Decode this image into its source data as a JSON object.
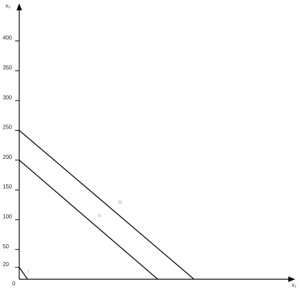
{
  "chart_data": {
    "type": "line",
    "x_label": "x₁",
    "y_label": "x₂",
    "origin_label": "0",
    "xlim": [
      0,
      464
    ],
    "ylim": [
      0,
      463
    ],
    "yticks": [
      20,
      50,
      100,
      150,
      200,
      250,
      300,
      350,
      400
    ],
    "series": [
      {
        "name": "I",
        "color": "#000000",
        "x": [
          0,
          14
        ],
        "values": [
          20,
          0
        ]
      },
      {
        "name": "II",
        "color": "#000000",
        "x": [
          0,
          233
        ],
        "values": [
          200,
          0
        ]
      },
      {
        "name": "III",
        "color": "#000000",
        "x": [
          0,
          294
        ],
        "values": [
          250,
          0
        ]
      }
    ]
  }
}
